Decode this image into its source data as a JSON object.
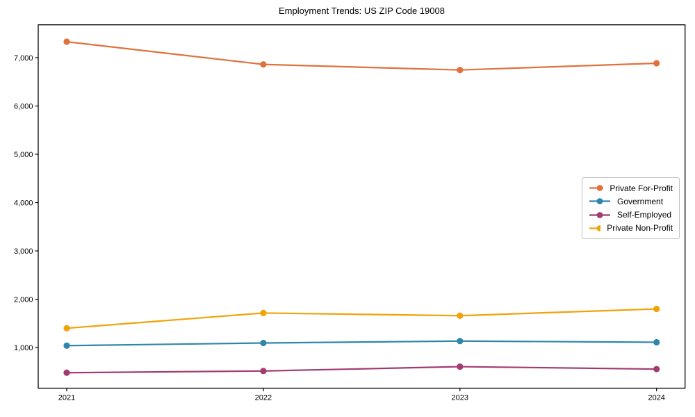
{
  "chart_data": {
    "type": "line",
    "title": "Employment Trends: US ZIP Code 19008",
    "categories": [
      "2021",
      "2022",
      "2023",
      "2024"
    ],
    "series": [
      {
        "name": "Private For-Profit",
        "color": "#E1703C",
        "values": [
          7330,
          6860,
          6745,
          6885
        ]
      },
      {
        "name": "Government",
        "color": "#2E86AB",
        "values": [
          1040,
          1095,
          1135,
          1110
        ]
      },
      {
        "name": "Self-Employed",
        "color": "#A23B72",
        "values": [
          480,
          515,
          605,
          555
        ]
      },
      {
        "name": "Private Non-Profit",
        "color": "#F1A208",
        "values": [
          1400,
          1715,
          1660,
          1800
        ]
      }
    ],
    "xlabel": "",
    "ylabel": "",
    "ylim": [
      160,
      7680
    ],
    "yticks": [
      1000,
      2000,
      3000,
      4000,
      5000,
      6000,
      7000
    ],
    "ytick_labels": [
      "1,000",
      "2,000",
      "3,000",
      "4,000",
      "5,000",
      "6,000",
      "7,000"
    ],
    "grid": false,
    "legend_position": "right",
    "axis_color": "#000000",
    "background": "#ffffff",
    "marker": "circle"
  }
}
